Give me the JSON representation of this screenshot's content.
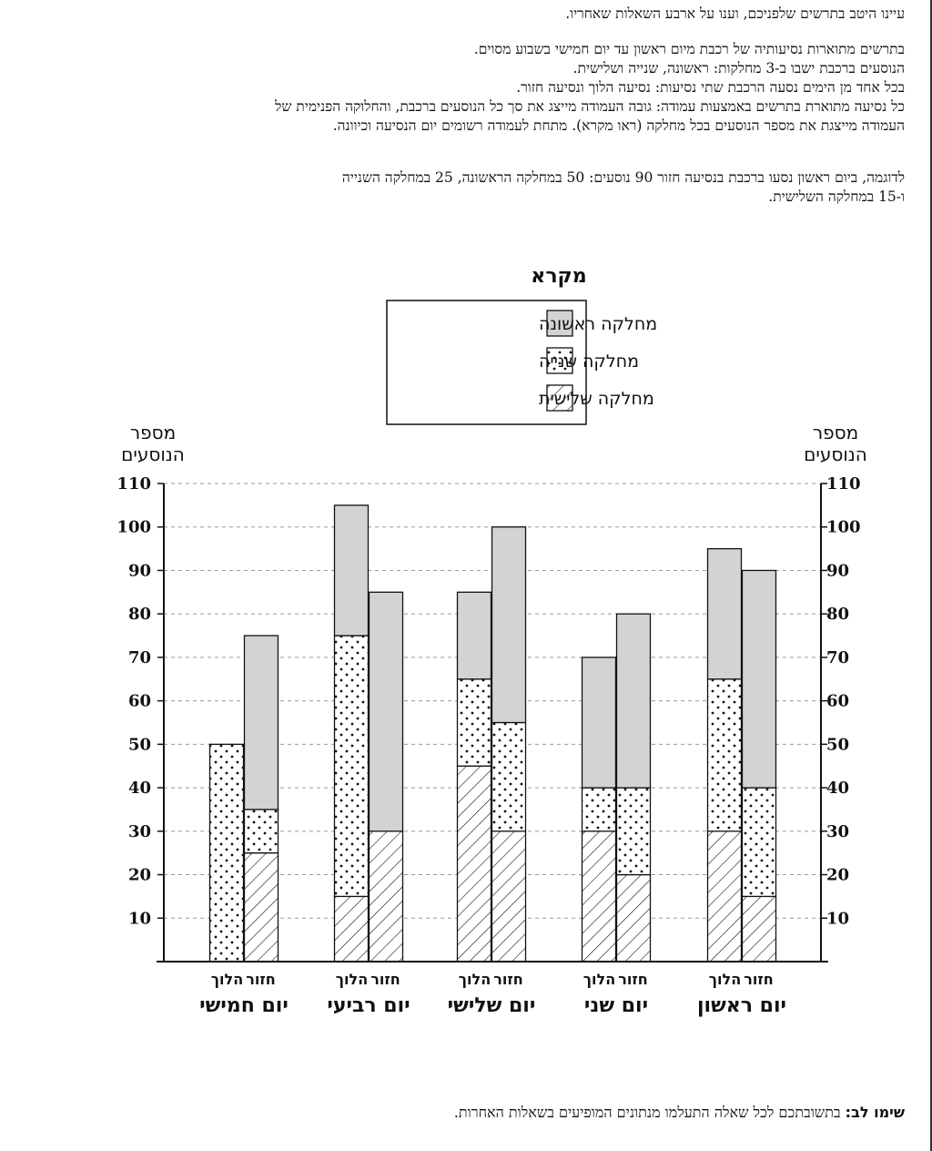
{
  "intro": {
    "title_line": "עיינו היטב בתרשים שלפניכם, וענו על ארבע השאלות שאחריו.",
    "paragraph_lines": [
      "בתרשים מתוארות נסיעותיה של רכבת מיום ראשון עד יום חמישי בשבוע מסוים.",
      "הנוסעים ברכבת ישבו ב-3 מחלקות: ראשונה, שנייה ושלישית.",
      "בכל אחד מן הימים נסעה הרכבת שתי נסיעות: נסיעה הלוך ונסיעה חזור.",
      "כל נסיעה מתוארת בתרשים באמצעות עמודה: גובה העמודה מייצג את סך כל הנוסעים ברכבת, והחלוקה הפנימית של",
      "העמודה מייצגת את מספר הנוסעים בכל מחלקה (ראו מקרא).  מתחת לעמודה רשומים יום הנסיעה וכיוונה."
    ],
    "example_lines": [
      "לדוגמה, ביום ראשון נסעו ברכבת בנסיעה חזור 90 נוסעים: 50 במחלקה הראשונה, 25 במחלקה השנייה",
      "ו-15 במחלקה השלישית."
    ]
  },
  "note": {
    "label": "שימו לב:",
    "text": " בתשובתכם לכל שאלה התעלמו מנתונים המופיעים בשאלות האחרות."
  },
  "chart_data": {
    "type": "bar",
    "stacked": true,
    "legend_title": "מקרא",
    "legend_position": "top-center",
    "ylabel_lines": [
      "מספר",
      "הנוסעים"
    ],
    "ylim": [
      0,
      110
    ],
    "yticks": [
      10,
      20,
      30,
      40,
      50,
      60,
      70,
      80,
      90,
      100,
      110
    ],
    "grid": "horizontal dashed",
    "direction_labels": [
      "הלוך",
      "חזור"
    ],
    "days": [
      "יום ראשון",
      "יום שני",
      "יום שלישי",
      "יום רביעי",
      "יום חמישי"
    ],
    "categories": [
      "יום ראשון הלוך",
      "יום ראשון חזור",
      "יום שני הלוך",
      "יום שני חזור",
      "יום שלישי הלוך",
      "יום שלישי חזור",
      "יום רביעי הלוך",
      "יום רביעי חזור",
      "יום חמישי הלוך",
      "יום חמישי חזור"
    ],
    "series": [
      {
        "name": "מחלקה שלישית",
        "pattern": "hatch",
        "values": [
          30,
          15,
          30,
          20,
          45,
          30,
          15,
          30,
          0,
          25
        ]
      },
      {
        "name": "מחלקה שנייה",
        "pattern": "dots",
        "values": [
          35,
          25,
          10,
          20,
          20,
          25,
          60,
          0,
          50,
          10
        ]
      },
      {
        "name": "מחלקה ראשונה",
        "pattern": "solid",
        "color": "#d3d3d3",
        "values": [
          30,
          50,
          30,
          40,
          20,
          45,
          30,
          55,
          0,
          40
        ]
      }
    ]
  }
}
